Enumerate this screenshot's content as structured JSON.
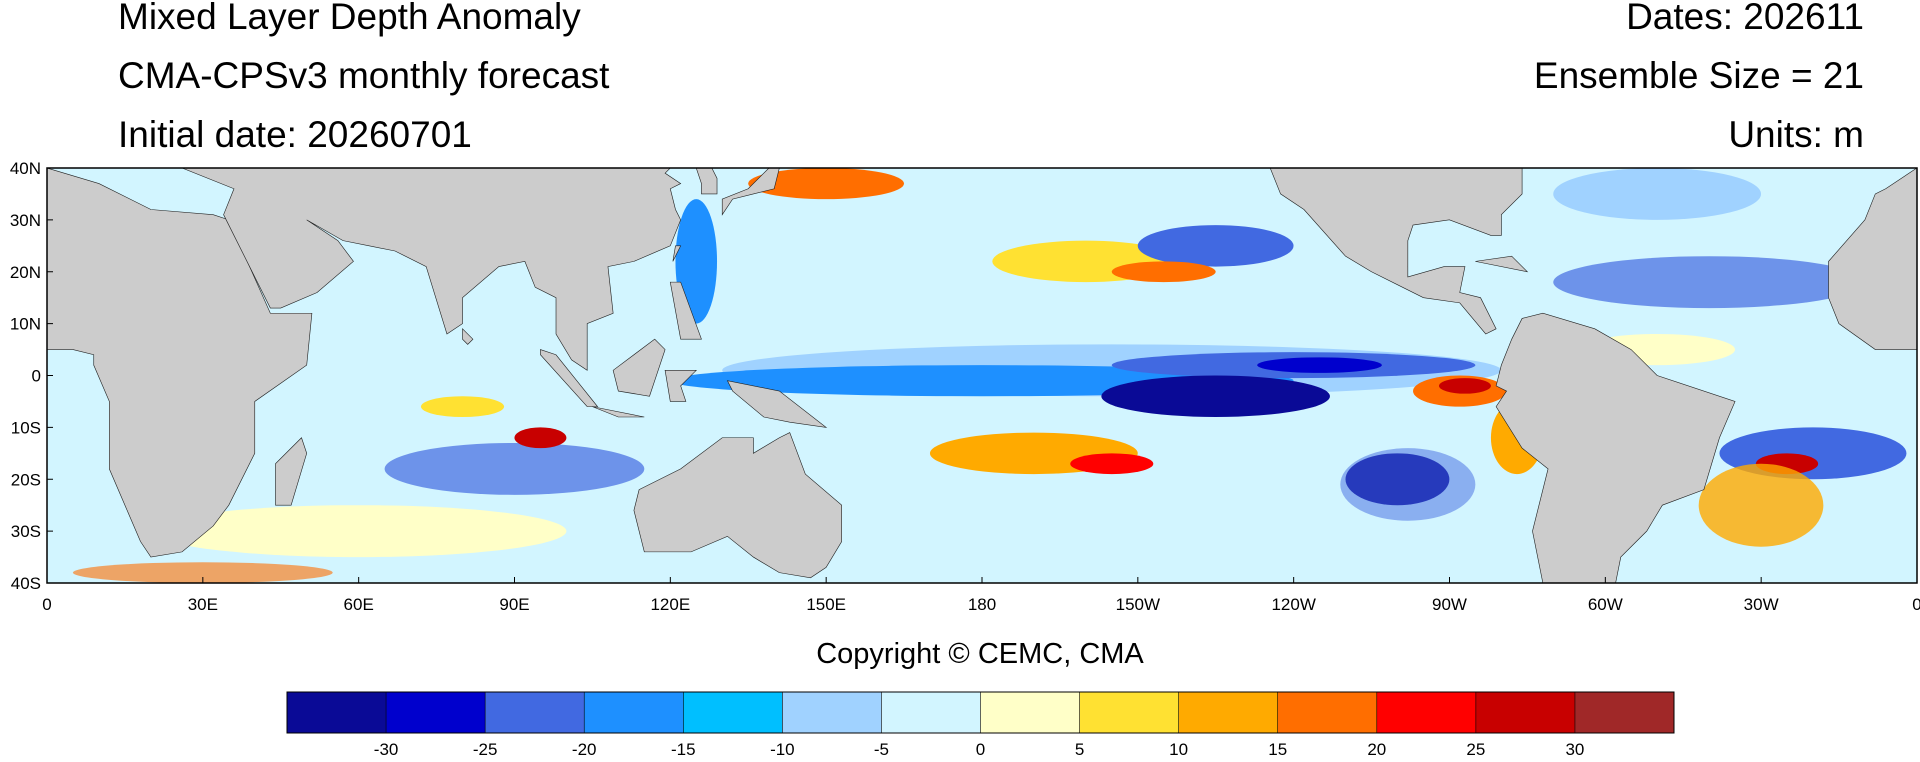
{
  "header": {
    "title": "Mixed Layer Depth Anomaly",
    "subtitle": "CMA-CPSv3 monthly forecast",
    "initial_date": "Initial date: 20260701",
    "dates": "Dates: 202611",
    "ensemble": "Ensemble Size = 21",
    "units": "Units: m"
  },
  "map": {
    "xlim": [
      0,
      360
    ],
    "ylim": [
      -40,
      40
    ],
    "xticks": [
      0,
      {
        "value": 30,
        "label": "30E"
      },
      {
        "value": 60,
        "label": "60E"
      },
      {
        "value": 90,
        "label": "90E"
      },
      {
        "value": 120,
        "label": "120E"
      },
      {
        "value": 150,
        "label": "150E"
      },
      {
        "value": 180,
        "label": "180"
      },
      {
        "value": 210,
        "label": "150W"
      },
      {
        "value": 240,
        "label": "120W"
      },
      {
        "value": 270,
        "label": "90W"
      },
      {
        "value": 300,
        "label": "60W"
      },
      {
        "value": 330,
        "label": "30W"
      },
      {
        "value": 360,
        "label": "0"
      }
    ],
    "yticks": [
      {
        "value": 40,
        "label": "40N"
      },
      {
        "value": 30,
        "label": "30N"
      },
      {
        "value": 20,
        "label": "20N"
      },
      {
        "value": 10,
        "label": "10N"
      },
      0,
      {
        "value": -10,
        "label": "10S"
      },
      {
        "value": -20,
        "label": "20S"
      },
      {
        "value": -30,
        "label": "30S"
      },
      {
        "value": -40,
        "label": "40S"
      }
    ]
  },
  "copyright": "Copyright © CEMC, CMA",
  "colorbar": {
    "levels": [
      -30,
      -25,
      -20,
      -15,
      -10,
      -5,
      0,
      5,
      10,
      15,
      20,
      25,
      30
    ],
    "colors": [
      "#0a0a96",
      "#0000cd",
      "#4169e1",
      "#1e90ff",
      "#00bfff",
      "#a0d2ff",
      "#d2f5ff",
      "#ffffc8",
      "#ffe132",
      "#ffaa00",
      "#ff6e00",
      "#ff0000",
      "#c80000",
      "#a02828"
    ]
  }
}
